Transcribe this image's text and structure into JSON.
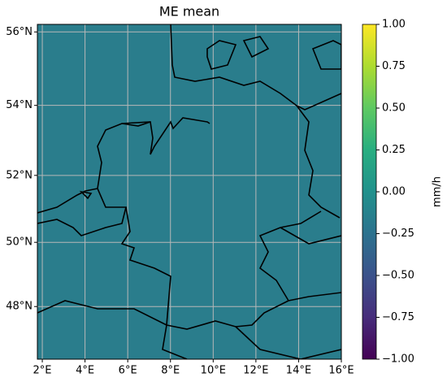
{
  "chart_data": {
    "type": "map",
    "title": "ME mean",
    "xlim": [
      1.77,
      16
    ],
    "ylim": [
      46.3,
      56.2
    ],
    "projection": "mercator",
    "grid": true,
    "xticks": [
      {
        "value": 2,
        "label": "2°E"
      },
      {
        "value": 4,
        "label": "4°E"
      },
      {
        "value": 6,
        "label": "6°E"
      },
      {
        "value": 8,
        "label": "8°E"
      },
      {
        "value": 10,
        "label": "10°E"
      },
      {
        "value": 12,
        "label": "12°E"
      },
      {
        "value": 14,
        "label": "14°E"
      },
      {
        "value": 16,
        "label": "16°E"
      }
    ],
    "yticks": [
      {
        "value": 48,
        "label": "48°N"
      },
      {
        "value": 50,
        "label": "50°N"
      },
      {
        "value": 52,
        "label": "52°N"
      },
      {
        "value": 54,
        "label": "54°N"
      },
      {
        "value": 56,
        "label": "56°N"
      }
    ],
    "colorbar": {
      "label": "mm/h",
      "lim": [
        -1,
        1
      ],
      "ticks": [
        {
          "value": 1,
          "label": "1.00"
        },
        {
          "value": 0.75,
          "label": "0.75"
        },
        {
          "value": 0.5,
          "label": "0.50"
        },
        {
          "value": 0.25,
          "label": "0.25"
        },
        {
          "value": 0,
          "label": "0.00"
        },
        {
          "value": -0.25,
          "label": "−0.25"
        },
        {
          "value": -0.5,
          "label": "−0.50"
        },
        {
          "value": -0.75,
          "label": "−0.75"
        },
        {
          "value": -1,
          "label": "−1.00"
        }
      ]
    }
  }
}
